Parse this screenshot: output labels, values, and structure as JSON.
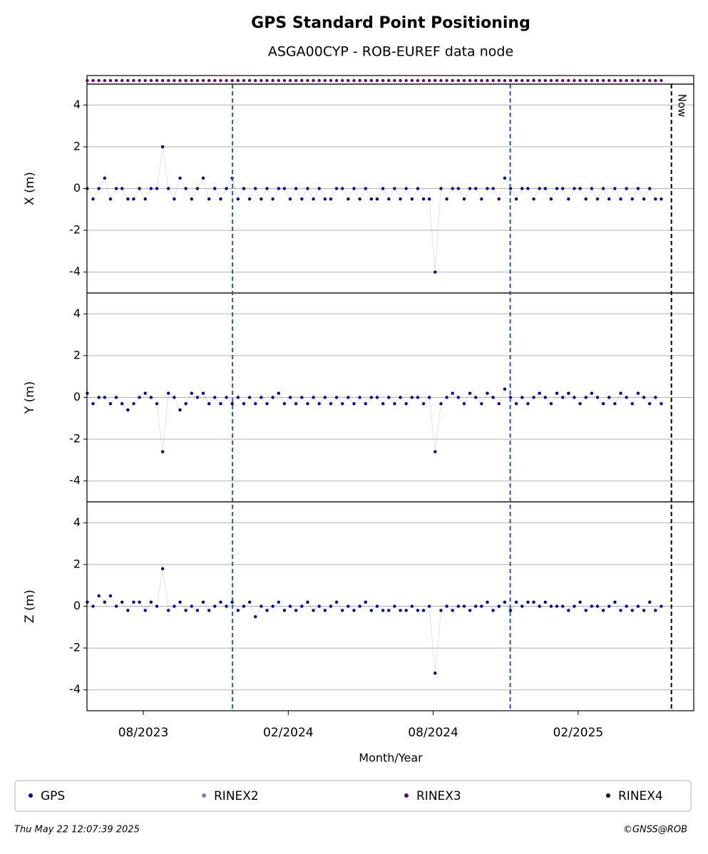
{
  "chart_data": {
    "type": "scatter",
    "title": "GPS Standard Point Positioning",
    "subtitle": "ASGA00CYP - ROB-EUREF data node",
    "xlabel": "Month/Year",
    "x": [
      2023.39,
      2023.41,
      2023.43,
      2023.45,
      2023.47,
      2023.49,
      2023.51,
      2023.53,
      2023.55,
      2023.57,
      2023.59,
      2023.61,
      2023.63,
      2023.65,
      2023.67,
      2023.69,
      2023.71,
      2023.73,
      2023.75,
      2023.77,
      2023.79,
      2023.81,
      2023.83,
      2023.85,
      2023.87,
      2023.89,
      2023.91,
      2023.93,
      2023.95,
      2023.97,
      2023.99,
      2024.01,
      2024.03,
      2024.05,
      2024.07,
      2024.09,
      2024.11,
      2024.13,
      2024.15,
      2024.17,
      2024.19,
      2024.21,
      2024.23,
      2024.25,
      2024.27,
      2024.29,
      2024.31,
      2024.33,
      2024.35,
      2024.37,
      2024.39,
      2024.41,
      2024.43,
      2024.45,
      2024.47,
      2024.49,
      2024.51,
      2024.53,
      2024.55,
      2024.57,
      2024.59,
      2024.61,
      2024.63,
      2024.65,
      2024.67,
      2024.69,
      2024.71,
      2024.73,
      2024.75,
      2024.77,
      2024.79,
      2024.81,
      2024.83,
      2024.85,
      2024.87,
      2024.89,
      2024.91,
      2024.93,
      2024.95,
      2024.97,
      2024.99,
      2025.01,
      2025.03,
      2025.05,
      2025.07,
      2025.09,
      2025.11,
      2025.13,
      2025.15,
      2025.17,
      2025.19,
      2025.21,
      2025.23,
      2025.25,
      2025.27,
      2025.29,
      2025.31,
      2025.33,
      2025.35,
      2025.37
    ],
    "xlim": [
      2023.389,
      2025.482
    ],
    "xticks": [
      {
        "value": 2023.5833,
        "label": "08/2023"
      },
      {
        "value": 2024.0833,
        "label": "02/2024"
      },
      {
        "value": 2024.5833,
        "label": "08/2024"
      },
      {
        "value": 2025.0833,
        "label": "02/2025"
      }
    ],
    "ylim": [
      -5,
      5
    ],
    "yticks": [
      -4,
      -2,
      0,
      2,
      4
    ],
    "grid": true,
    "panels": [
      {
        "ylabel": "X (m)",
        "values": [
          0,
          -0.5,
          0,
          0.5,
          -0.5,
          0,
          0,
          -0.5,
          -0.5,
          0,
          -0.5,
          0,
          0,
          2,
          0,
          -0.5,
          0.5,
          0,
          -0.5,
          0,
          0.5,
          -0.5,
          0,
          -0.5,
          0,
          0.5,
          -0.5,
          0,
          -0.5,
          0,
          -0.5,
          0,
          -0.5,
          0,
          0,
          -0.5,
          0,
          -0.5,
          0,
          -0.5,
          0,
          -0.5,
          -0.5,
          0,
          0,
          -0.5,
          0,
          -0.5,
          0,
          -0.5,
          -0.5,
          0,
          -0.5,
          0,
          -0.5,
          0,
          -0.5,
          0,
          -0.5,
          -0.5,
          -4,
          0,
          -0.5,
          0,
          0,
          -0.5,
          0,
          0,
          -0.5,
          0,
          0,
          -0.5,
          0.5,
          0,
          -0.5,
          0,
          0,
          -0.5,
          0,
          0,
          -0.5,
          0,
          0,
          -0.5,
          0,
          0,
          -0.5,
          0,
          -0.5,
          0,
          -0.5,
          0,
          -0.5,
          0,
          -0.5,
          0,
          -0.5,
          0,
          -0.5,
          -0.5
        ]
      },
      {
        "ylabel": "Y (m)",
        "values": [
          0.2,
          -0.3,
          0,
          0,
          -0.3,
          0,
          -0.3,
          -0.6,
          -0.3,
          0,
          0.2,
          0,
          -0.3,
          -2.6,
          0.2,
          0,
          -0.6,
          -0.3,
          0.2,
          0,
          0.2,
          -0.3,
          0,
          -0.3,
          0,
          -0.3,
          0,
          -0.3,
          0,
          -0.3,
          0,
          -0.3,
          0,
          0.2,
          -0.3,
          0,
          -0.3,
          0,
          -0.3,
          0,
          -0.3,
          0,
          -0.3,
          0,
          -0.3,
          0,
          -0.3,
          0,
          -0.3,
          0,
          0,
          -0.3,
          0,
          -0.3,
          0,
          -0.3,
          0,
          0,
          -0.3,
          0,
          -2.6,
          -0.3,
          0,
          0.2,
          0,
          -0.3,
          0.2,
          0,
          -0.3,
          0.2,
          0,
          -0.3,
          0.4,
          0,
          -0.3,
          0,
          -0.3,
          0,
          0.2,
          0,
          -0.3,
          0.2,
          0,
          0.2,
          0,
          -0.3,
          0,
          0.2,
          0,
          -0.3,
          0,
          -0.3,
          0.2,
          0,
          -0.3,
          0.2,
          0,
          -0.3,
          0,
          -0.3
        ]
      },
      {
        "ylabel": "Z (m)",
        "values": [
          0.2,
          0,
          0.5,
          0.2,
          0.5,
          0,
          0.2,
          -0.2,
          0.2,
          0.2,
          -0.2,
          0.2,
          0,
          1.8,
          -0.2,
          0,
          0.2,
          -0.2,
          0,
          -0.2,
          0.2,
          -0.2,
          0,
          0.2,
          0,
          0.2,
          -0.2,
          0,
          0.2,
          -0.5,
          0,
          -0.2,
          0,
          0.2,
          -0.2,
          0,
          -0.2,
          0,
          0.2,
          -0.2,
          0,
          -0.2,
          0,
          0.2,
          -0.2,
          0,
          -0.2,
          0,
          0.2,
          -0.2,
          0,
          -0.2,
          -0.2,
          0,
          -0.2,
          -0.2,
          0,
          -0.2,
          -0.2,
          0,
          -3.2,
          -0.2,
          0,
          -0.2,
          0,
          0,
          -0.2,
          0,
          0,
          0.2,
          -0.2,
          0,
          0.2,
          -0.2,
          0.2,
          0,
          0.2,
          0.2,
          0,
          0.2,
          0,
          0,
          0,
          -0.2,
          0,
          0.2,
          -0.2,
          0,
          0,
          -0.2,
          0,
          0.2,
          -0.2,
          0,
          -0.2,
          0,
          -0.2,
          0.2,
          -0.2,
          0
        ]
      }
    ],
    "legend": [
      {
        "name": "GPS",
        "color": "#00008b"
      },
      {
        "name": "RINEX2",
        "color": "#7b7bc0"
      },
      {
        "name": "RINEX3",
        "color": "#660066"
      },
      {
        "name": "RINEX4",
        "color": "#220022"
      }
    ],
    "vlines": [
      2023.891,
      2024.849
    ],
    "now": {
      "value": 2025.405,
      "label": "Now"
    },
    "timestamp": "Thu May 22 12:07:39 2025",
    "credit": "©GNSS@ROB"
  }
}
